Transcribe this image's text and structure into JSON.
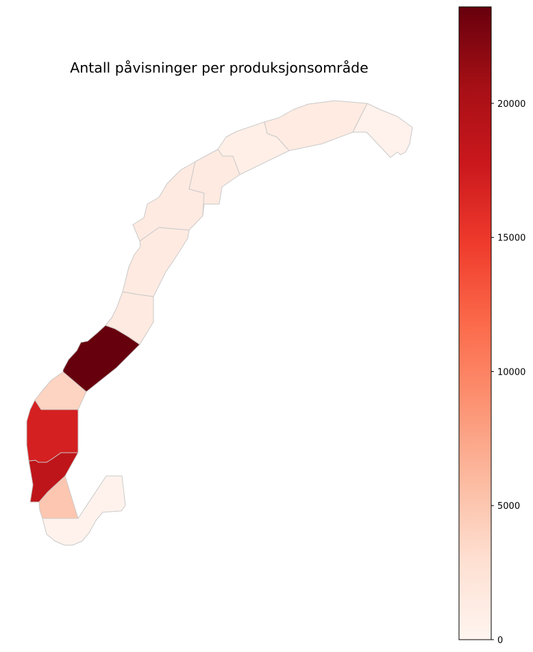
{
  "title": "Antall påvisninger per produksjonsområde",
  "colormap": "Reds",
  "colorbar": {
    "min": 0,
    "max": 23600,
    "ticks": [
      "0",
      "5000",
      "10000",
      "15000",
      "20000"
    ],
    "stops": [
      "#fff5f0",
      "#fee0d2",
      "#fcbba1",
      "#fc9272",
      "#fb6a4a",
      "#ef3b2c",
      "#cb181d",
      "#a50f15",
      "#67000d"
    ]
  },
  "regions": [
    {
      "name": "region-1",
      "value": 400
    },
    {
      "name": "region-2",
      "value": 5000
    },
    {
      "name": "region-3",
      "value": 18700
    },
    {
      "name": "region-4",
      "value": 17000
    },
    {
      "name": "region-5",
      "value": 4000
    },
    {
      "name": "region-6",
      "value": 23600
    },
    {
      "name": "region-7",
      "value": 1600
    },
    {
      "name": "region-8",
      "value": 1500
    },
    {
      "name": "region-9",
      "value": 1500
    },
    {
      "name": "region-10",
      "value": 1500
    },
    {
      "name": "region-11",
      "value": 900
    },
    {
      "name": "region-12",
      "value": 1400
    },
    {
      "name": "region-13",
      "value": 500
    }
  ]
}
